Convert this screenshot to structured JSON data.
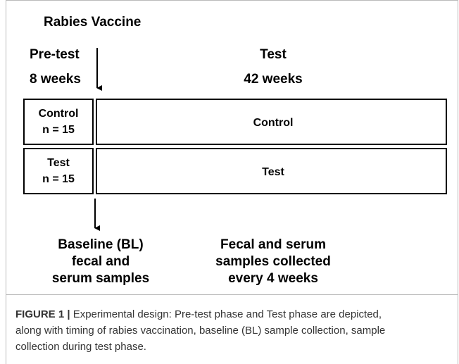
{
  "header": {
    "title": "Rabies Vaccine"
  },
  "phases": [
    {
      "name": "Pre-test",
      "duration": "8 weeks"
    },
    {
      "name": "Test",
      "duration": "42 weeks"
    }
  ],
  "groups": [
    {
      "label": "Control",
      "n": "n = 15",
      "bar": "Control"
    },
    {
      "label": "Test",
      "n": "n = 15",
      "bar": "Test"
    }
  ],
  "notes": [
    {
      "lines": [
        "Baseline (BL)",
        "fecal and",
        "serum samples"
      ]
    },
    {
      "lines": [
        "Fecal and serum",
        "samples collected",
        "every 4 weeks"
      ]
    }
  ],
  "caption": {
    "label": "FIGURE 1 |",
    "lines": [
      " Experimental design: Pre-test phase and Test phase are depicted,",
      "along with timing of rabies vaccination, baseline (BL) sample collection, sample",
      "collection during test phase."
    ]
  }
}
